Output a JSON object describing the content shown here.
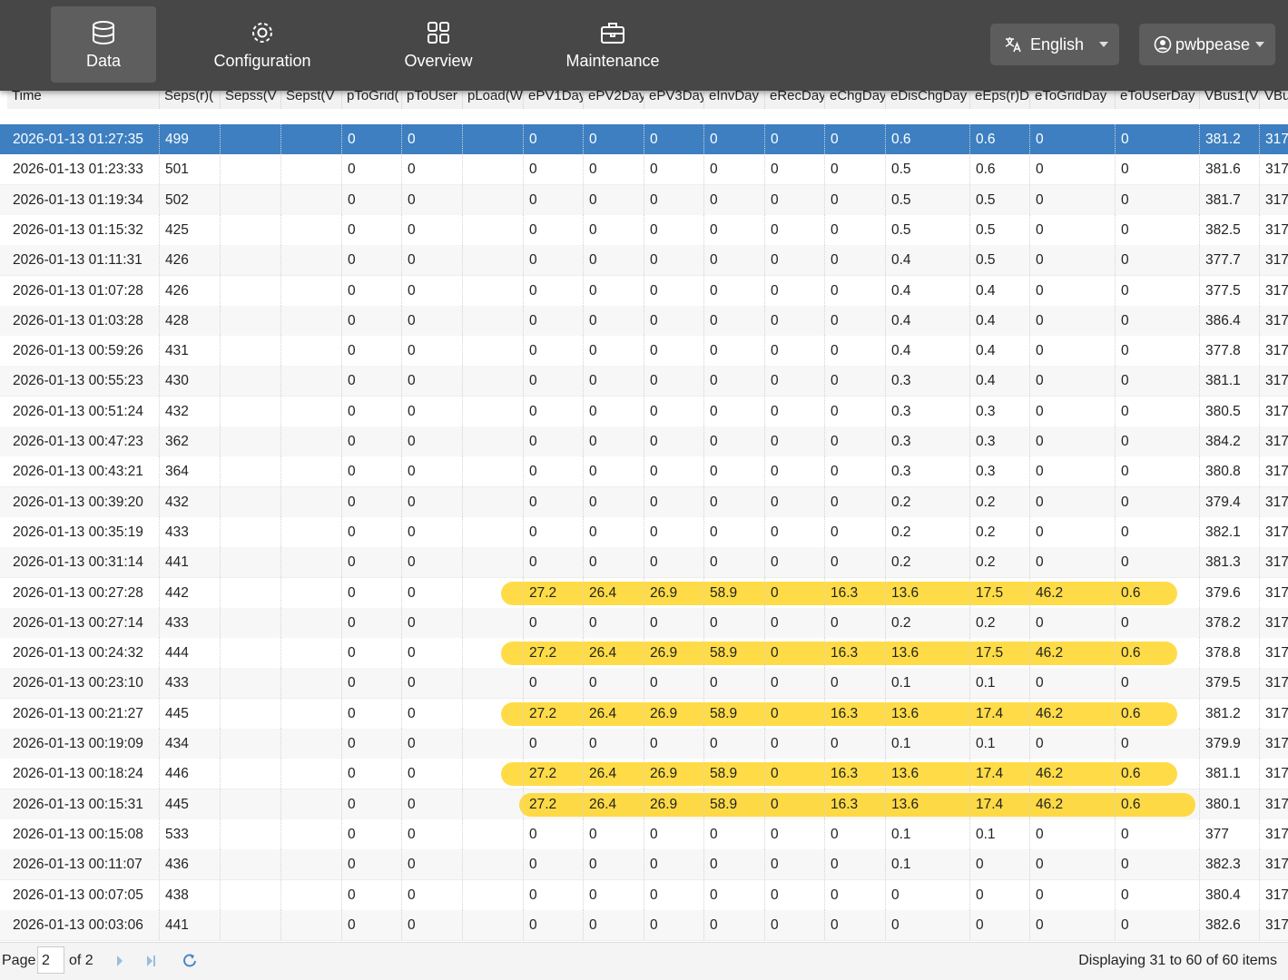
{
  "nav": {
    "items": [
      "Data",
      "Configuration",
      "Overview",
      "Maintenance"
    ],
    "language": "English",
    "user": "pwbpease"
  },
  "table": {
    "headers": [
      "Time",
      "Seps(r)(",
      "Sepss(V",
      "Sepst(V",
      "pToGrid(",
      "pToUser",
      "pLoad(W",
      "ePV1Day",
      "ePV2Day",
      "ePV3Day",
      "eInvDay",
      "eRecDay",
      "eChgDay",
      "eDisChgDay",
      "eEps(r)D",
      "eToGridDay",
      "eToUserDay",
      "VBus1(V",
      "VBu"
    ],
    "rows": [
      [
        "2026-01-13 01:27:35",
        499,
        0,
        0,
        0,
        0,
        0,
        0,
        0,
        0,
        0.6,
        0.6,
        0,
        0,
        381.2,
        317
      ],
      [
        "2026-01-13 01:23:33",
        501,
        0,
        0,
        0,
        0,
        0,
        0,
        0,
        0,
        0.5,
        0.6,
        0,
        0,
        381.6,
        317
      ],
      [
        "2026-01-13 01:19:34",
        502,
        0,
        0,
        0,
        0,
        0,
        0,
        0,
        0,
        0.5,
        0.5,
        0,
        0,
        381.7,
        317
      ],
      [
        "2026-01-13 01:15:32",
        425,
        0,
        0,
        0,
        0,
        0,
        0,
        0,
        0,
        0.5,
        0.5,
        0,
        0,
        382.5,
        317
      ],
      [
        "2026-01-13 01:11:31",
        426,
        0,
        0,
        0,
        0,
        0,
        0,
        0,
        0,
        0.4,
        0.5,
        0,
        0,
        377.7,
        317
      ],
      [
        "2026-01-13 01:07:28",
        426,
        0,
        0,
        0,
        0,
        0,
        0,
        0,
        0,
        0.4,
        0.4,
        0,
        0,
        377.5,
        317
      ],
      [
        "2026-01-13 01:03:28",
        428,
        0,
        0,
        0,
        0,
        0,
        0,
        0,
        0,
        0.4,
        0.4,
        0,
        0,
        386.4,
        317
      ],
      [
        "2026-01-13 00:59:26",
        431,
        0,
        0,
        0,
        0,
        0,
        0,
        0,
        0,
        0.4,
        0.4,
        0,
        0,
        377.8,
        317
      ],
      [
        "2026-01-13 00:55:23",
        430,
        0,
        0,
        0,
        0,
        0,
        0,
        0,
        0,
        0.3,
        0.4,
        0,
        0,
        381.1,
        317
      ],
      [
        "2026-01-13 00:51:24",
        432,
        0,
        0,
        0,
        0,
        0,
        0,
        0,
        0,
        0.3,
        0.3,
        0,
        0,
        380.5,
        317
      ],
      [
        "2026-01-13 00:47:23",
        362,
        0,
        0,
        0,
        0,
        0,
        0,
        0,
        0,
        0.3,
        0.3,
        0,
        0,
        384.2,
        317
      ],
      [
        "2026-01-13 00:43:21",
        364,
        0,
        0,
        0,
        0,
        0,
        0,
        0,
        0,
        0.3,
        0.3,
        0,
        0,
        380.8,
        317
      ],
      [
        "2026-01-13 00:39:20",
        432,
        0,
        0,
        0,
        0,
        0,
        0,
        0,
        0,
        0.2,
        0.2,
        0,
        0,
        379.4,
        317
      ],
      [
        "2026-01-13 00:35:19",
        433,
        0,
        0,
        0,
        0,
        0,
        0,
        0,
        0,
        0.2,
        0.2,
        0,
        0,
        382.1,
        317
      ],
      [
        "2026-01-13 00:31:14",
        441,
        0,
        0,
        0,
        0,
        0,
        0,
        0,
        0,
        0.2,
        0.2,
        0,
        0,
        381.3,
        317
      ],
      [
        "2026-01-13 00:27:28",
        442,
        0,
        0,
        27.2,
        26.4,
        26.9,
        58.9,
        0,
        16.3,
        13.6,
        17.5,
        46.2,
        0.6,
        379.6,
        317
      ],
      [
        "2026-01-13 00:27:14",
        433,
        0,
        0,
        0,
        0,
        0,
        0,
        0,
        0,
        0.2,
        0.2,
        0,
        0,
        378.2,
        317
      ],
      [
        "2026-01-13 00:24:32",
        444,
        0,
        0,
        27.2,
        26.4,
        26.9,
        58.9,
        0,
        16.3,
        13.6,
        17.5,
        46.2,
        0.6,
        378.8,
        317
      ],
      [
        "2026-01-13 00:23:10",
        433,
        0,
        0,
        0,
        0,
        0,
        0,
        0,
        0,
        0.1,
        0.1,
        0,
        0,
        379.5,
        317
      ],
      [
        "2026-01-13 00:21:27",
        445,
        0,
        0,
        27.2,
        26.4,
        26.9,
        58.9,
        0,
        16.3,
        13.6,
        17.4,
        46.2,
        0.6,
        381.2,
        317
      ],
      [
        "2026-01-13 00:19:09",
        434,
        0,
        0,
        0,
        0,
        0,
        0,
        0,
        0,
        0.1,
        0.1,
        0,
        0,
        379.9,
        317
      ],
      [
        "2026-01-13 00:18:24",
        446,
        0,
        0,
        27.2,
        26.4,
        26.9,
        58.9,
        0,
        16.3,
        13.6,
        17.4,
        46.2,
        0.6,
        381.1,
        317
      ],
      [
        "2026-01-13 00:15:31",
        445,
        0,
        0,
        27.2,
        26.4,
        26.9,
        58.9,
        0,
        16.3,
        13.6,
        17.4,
        46.2,
        0.6,
        380.1,
        317
      ],
      [
        "2026-01-13 00:15:08",
        533,
        0,
        0,
        0,
        0,
        0,
        0,
        0,
        0,
        0.1,
        0.1,
        0,
        0,
        377,
        317
      ],
      [
        "2026-01-13 00:11:07",
        436,
        0,
        0,
        0,
        0,
        0,
        0,
        0,
        0,
        0.1,
        0,
        0,
        0,
        382.3,
        317
      ],
      [
        "2026-01-13 00:07:05",
        438,
        0,
        0,
        0,
        0,
        0,
        0,
        0,
        0,
        0,
        0,
        0,
        0,
        380.4,
        317
      ],
      [
        "2026-01-13 00:03:06",
        441,
        0,
        0,
        0,
        0,
        0,
        0,
        0,
        0,
        0,
        0,
        0,
        0,
        382.6,
        317
      ]
    ]
  },
  "pager": {
    "page_label": "Page",
    "page": 2,
    "of": "of 2",
    "summary": "Displaying 31 to 60 of 60 items"
  }
}
